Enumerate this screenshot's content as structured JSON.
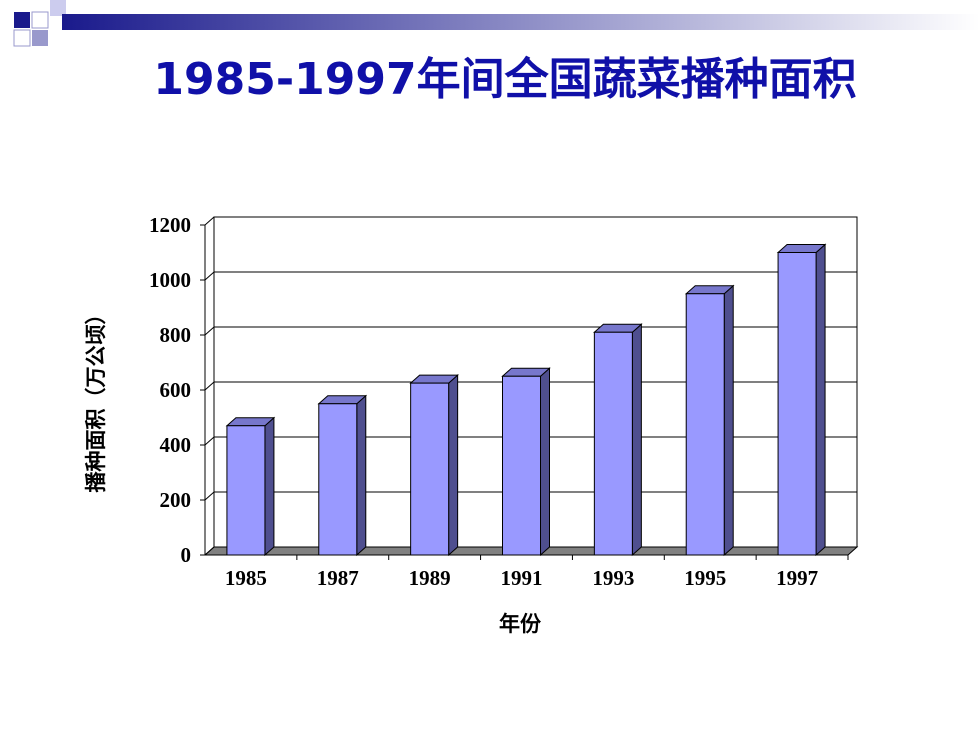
{
  "chart_data": {
    "type": "bar",
    "title": "1985-1997年间全国蔬菜播种面积",
    "x_label": "年份",
    "y_label": "播种面积（万公顷）",
    "categories": [
      "1985",
      "1987",
      "1989",
      "1991",
      "1993",
      "1995",
      "1997"
    ],
    "values": [
      470,
      550,
      625,
      650,
      810,
      950,
      1100
    ],
    "color": "#9999ff",
    "ylim": [
      0,
      1200
    ],
    "yticks": [
      0,
      200,
      400,
      600,
      800,
      1000,
      1200
    ],
    "grid": true
  }
}
